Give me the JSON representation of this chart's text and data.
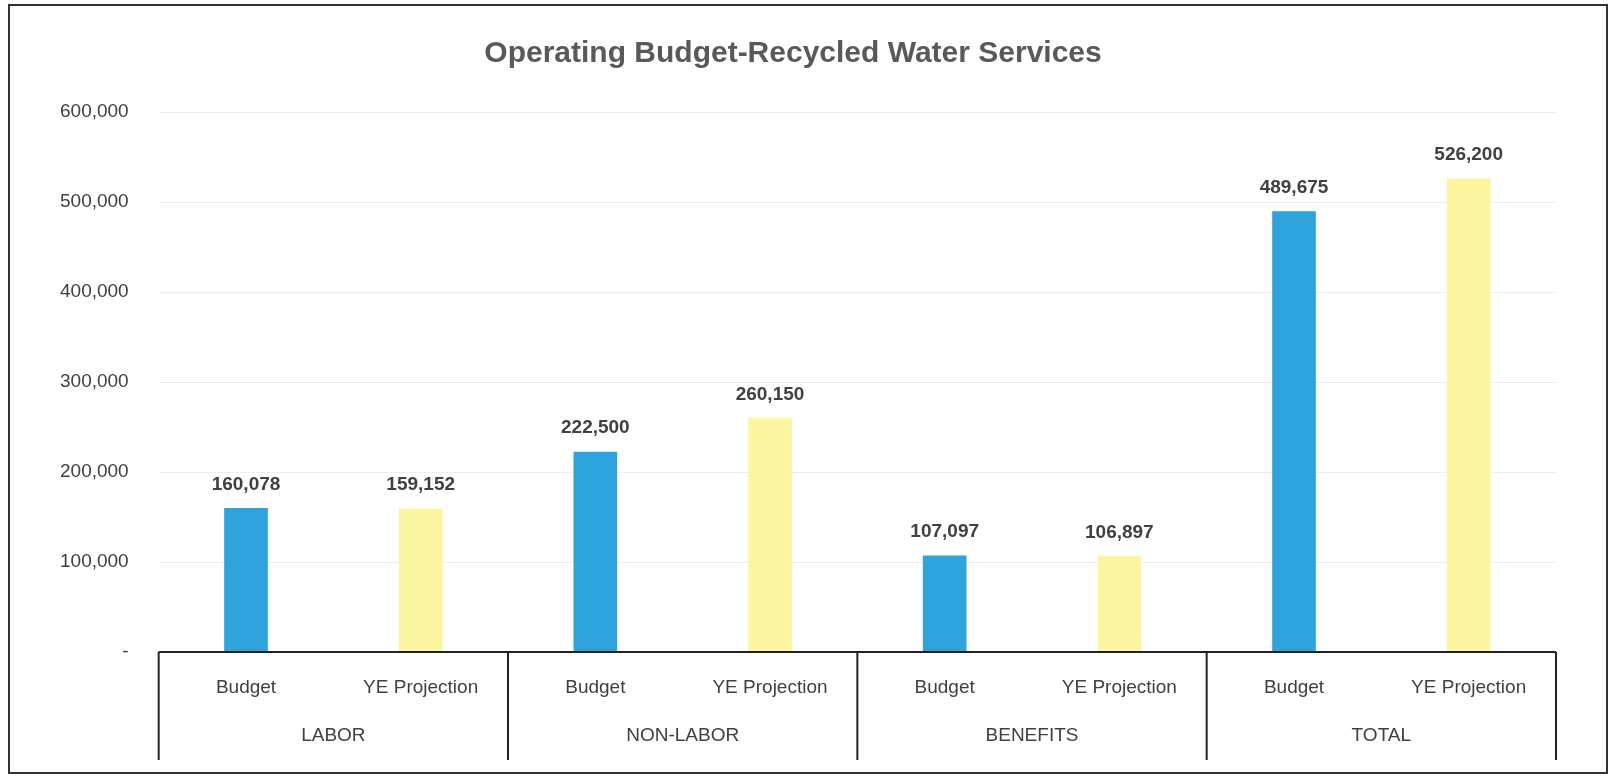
{
  "chart_data": {
    "type": "bar",
    "title": "Operating Budget-Recycled Water Services",
    "categories": [
      "LABOR",
      "NON-LABOR",
      "BENEFITS",
      "TOTAL"
    ],
    "series": [
      {
        "name": "Budget",
        "color": "#2ea3dc",
        "values": [
          160078,
          222500,
          107097,
          489675
        ],
        "value_labels": [
          "160,078",
          "222,500",
          "107,097",
          "489,675"
        ]
      },
      {
        "name": "YE Projection",
        "color": "#fbf5a0",
        "values": [
          159152,
          260150,
          106897,
          526200
        ],
        "value_labels": [
          "159,152",
          "260,150",
          "106,897",
          "526,200"
        ]
      }
    ],
    "ylim": [
      0,
      600000
    ],
    "yticks": [
      {
        "value": 0,
        "label": "-"
      },
      {
        "value": 100000,
        "label": "100,000"
      },
      {
        "value": 200000,
        "label": "200,000"
      },
      {
        "value": 300000,
        "label": "300,000"
      },
      {
        "value": 400000,
        "label": "400,000"
      },
      {
        "value": 500000,
        "label": "500,000"
      },
      {
        "value": 600000,
        "label": "600,000"
      }
    ],
    "grid": "y"
  }
}
